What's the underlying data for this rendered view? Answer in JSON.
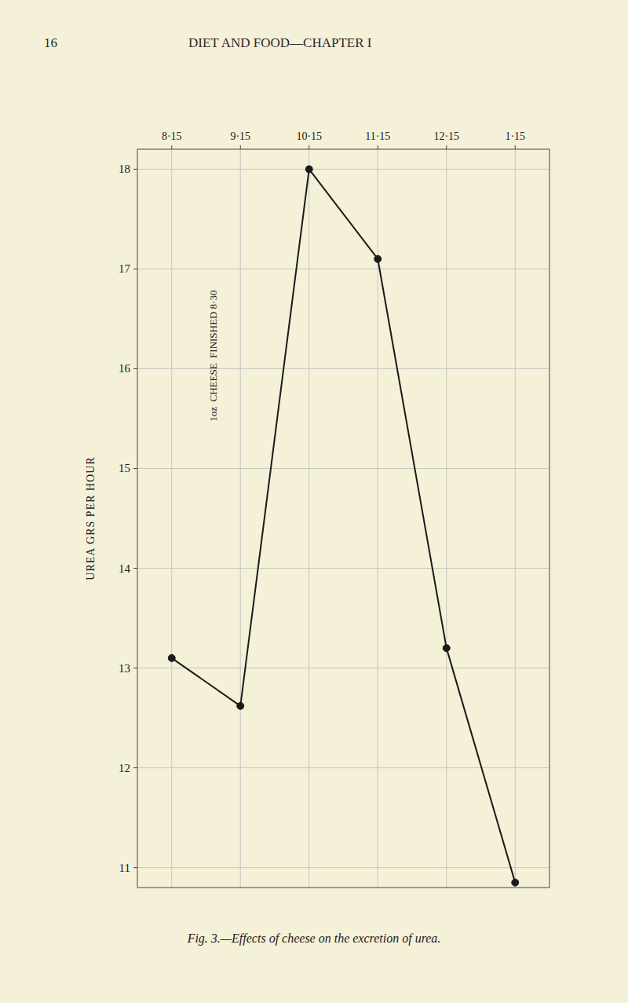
{
  "chart_data": {
    "type": "line",
    "title": "Fig. 3.—Effects of cheese on the excretion of urea.",
    "annotations": [
      {
        "text": "16"
      },
      {
        "text": "DIET AND FOOD—CHAPTER I"
      },
      {
        "text": "1oz  CHEESE  FINISHED 8·30"
      }
    ],
    "y_label": "UREA GRS PER HOUR",
    "categories": [
      "8·15",
      "9·15",
      "10·15",
      "11·15",
      "12·15",
      "1·15"
    ],
    "values": [
      13.1,
      12.62,
      18.0,
      17.1,
      13.2,
      10.85
    ],
    "ylim": [
      10.8,
      18.2
    ],
    "yticks": [
      11,
      12,
      13,
      14,
      15,
      16,
      17,
      18
    ],
    "grid": true,
    "color": "#1a1a1a",
    "marker": "circle"
  }
}
